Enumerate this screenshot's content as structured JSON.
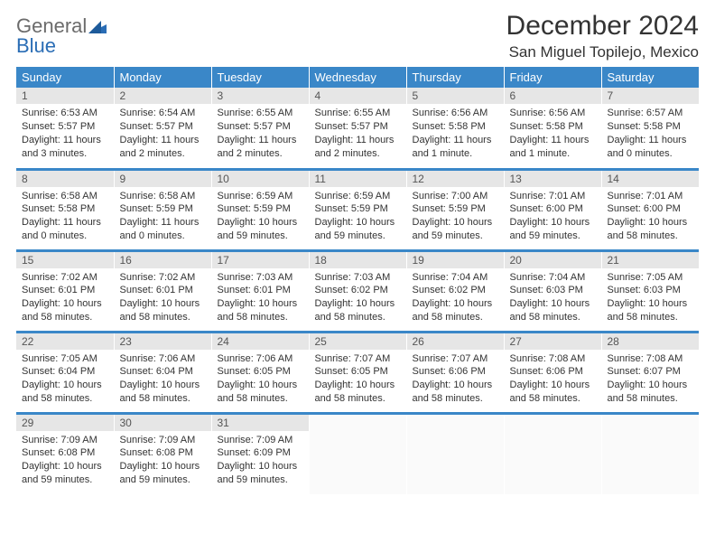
{
  "brand": {
    "gray": "General",
    "blue": "Blue"
  },
  "title": "December 2024",
  "location": "San Miguel Topilejo, Mexico",
  "colors": {
    "header_bg": "#3a87c8",
    "header_fg": "#ffffff",
    "daynum_bg": "#e6e6e6",
    "rule": "#3a87c8",
    "text": "#333333"
  },
  "fonts": {
    "title_size": 30,
    "location_size": 17,
    "dayhdr_size": 13,
    "cell_size": 11
  },
  "day_headers": [
    "Sunday",
    "Monday",
    "Tuesday",
    "Wednesday",
    "Thursday",
    "Friday",
    "Saturday"
  ],
  "weeks": [
    [
      {
        "n": "1",
        "sr": "6:53 AM",
        "ss": "5:57 PM",
        "dl": "11 hours and 3 minutes."
      },
      {
        "n": "2",
        "sr": "6:54 AM",
        "ss": "5:57 PM",
        "dl": "11 hours and 2 minutes."
      },
      {
        "n": "3",
        "sr": "6:55 AM",
        "ss": "5:57 PM",
        "dl": "11 hours and 2 minutes."
      },
      {
        "n": "4",
        "sr": "6:55 AM",
        "ss": "5:57 PM",
        "dl": "11 hours and 2 minutes."
      },
      {
        "n": "5",
        "sr": "6:56 AM",
        "ss": "5:58 PM",
        "dl": "11 hours and 1 minute."
      },
      {
        "n": "6",
        "sr": "6:56 AM",
        "ss": "5:58 PM",
        "dl": "11 hours and 1 minute."
      },
      {
        "n": "7",
        "sr": "6:57 AM",
        "ss": "5:58 PM",
        "dl": "11 hours and 0 minutes."
      }
    ],
    [
      {
        "n": "8",
        "sr": "6:58 AM",
        "ss": "5:58 PM",
        "dl": "11 hours and 0 minutes."
      },
      {
        "n": "9",
        "sr": "6:58 AM",
        "ss": "5:59 PM",
        "dl": "11 hours and 0 minutes."
      },
      {
        "n": "10",
        "sr": "6:59 AM",
        "ss": "5:59 PM",
        "dl": "10 hours and 59 minutes."
      },
      {
        "n": "11",
        "sr": "6:59 AM",
        "ss": "5:59 PM",
        "dl": "10 hours and 59 minutes."
      },
      {
        "n": "12",
        "sr": "7:00 AM",
        "ss": "5:59 PM",
        "dl": "10 hours and 59 minutes."
      },
      {
        "n": "13",
        "sr": "7:01 AM",
        "ss": "6:00 PM",
        "dl": "10 hours and 59 minutes."
      },
      {
        "n": "14",
        "sr": "7:01 AM",
        "ss": "6:00 PM",
        "dl": "10 hours and 58 minutes."
      }
    ],
    [
      {
        "n": "15",
        "sr": "7:02 AM",
        "ss": "6:01 PM",
        "dl": "10 hours and 58 minutes."
      },
      {
        "n": "16",
        "sr": "7:02 AM",
        "ss": "6:01 PM",
        "dl": "10 hours and 58 minutes."
      },
      {
        "n": "17",
        "sr": "7:03 AM",
        "ss": "6:01 PM",
        "dl": "10 hours and 58 minutes."
      },
      {
        "n": "18",
        "sr": "7:03 AM",
        "ss": "6:02 PM",
        "dl": "10 hours and 58 minutes."
      },
      {
        "n": "19",
        "sr": "7:04 AM",
        "ss": "6:02 PM",
        "dl": "10 hours and 58 minutes."
      },
      {
        "n": "20",
        "sr": "7:04 AM",
        "ss": "6:03 PM",
        "dl": "10 hours and 58 minutes."
      },
      {
        "n": "21",
        "sr": "7:05 AM",
        "ss": "6:03 PM",
        "dl": "10 hours and 58 minutes."
      }
    ],
    [
      {
        "n": "22",
        "sr": "7:05 AM",
        "ss": "6:04 PM",
        "dl": "10 hours and 58 minutes."
      },
      {
        "n": "23",
        "sr": "7:06 AM",
        "ss": "6:04 PM",
        "dl": "10 hours and 58 minutes."
      },
      {
        "n": "24",
        "sr": "7:06 AM",
        "ss": "6:05 PM",
        "dl": "10 hours and 58 minutes."
      },
      {
        "n": "25",
        "sr": "7:07 AM",
        "ss": "6:05 PM",
        "dl": "10 hours and 58 minutes."
      },
      {
        "n": "26",
        "sr": "7:07 AM",
        "ss": "6:06 PM",
        "dl": "10 hours and 58 minutes."
      },
      {
        "n": "27",
        "sr": "7:08 AM",
        "ss": "6:06 PM",
        "dl": "10 hours and 58 minutes."
      },
      {
        "n": "28",
        "sr": "7:08 AM",
        "ss": "6:07 PM",
        "dl": "10 hours and 58 minutes."
      }
    ],
    [
      {
        "n": "29",
        "sr": "7:09 AM",
        "ss": "6:08 PM",
        "dl": "10 hours and 59 minutes."
      },
      {
        "n": "30",
        "sr": "7:09 AM",
        "ss": "6:08 PM",
        "dl": "10 hours and 59 minutes."
      },
      {
        "n": "31",
        "sr": "7:09 AM",
        "ss": "6:09 PM",
        "dl": "10 hours and 59 minutes."
      },
      null,
      null,
      null,
      null
    ]
  ],
  "labels": {
    "sunrise": "Sunrise:",
    "sunset": "Sunset:",
    "daylight": "Daylight:"
  }
}
